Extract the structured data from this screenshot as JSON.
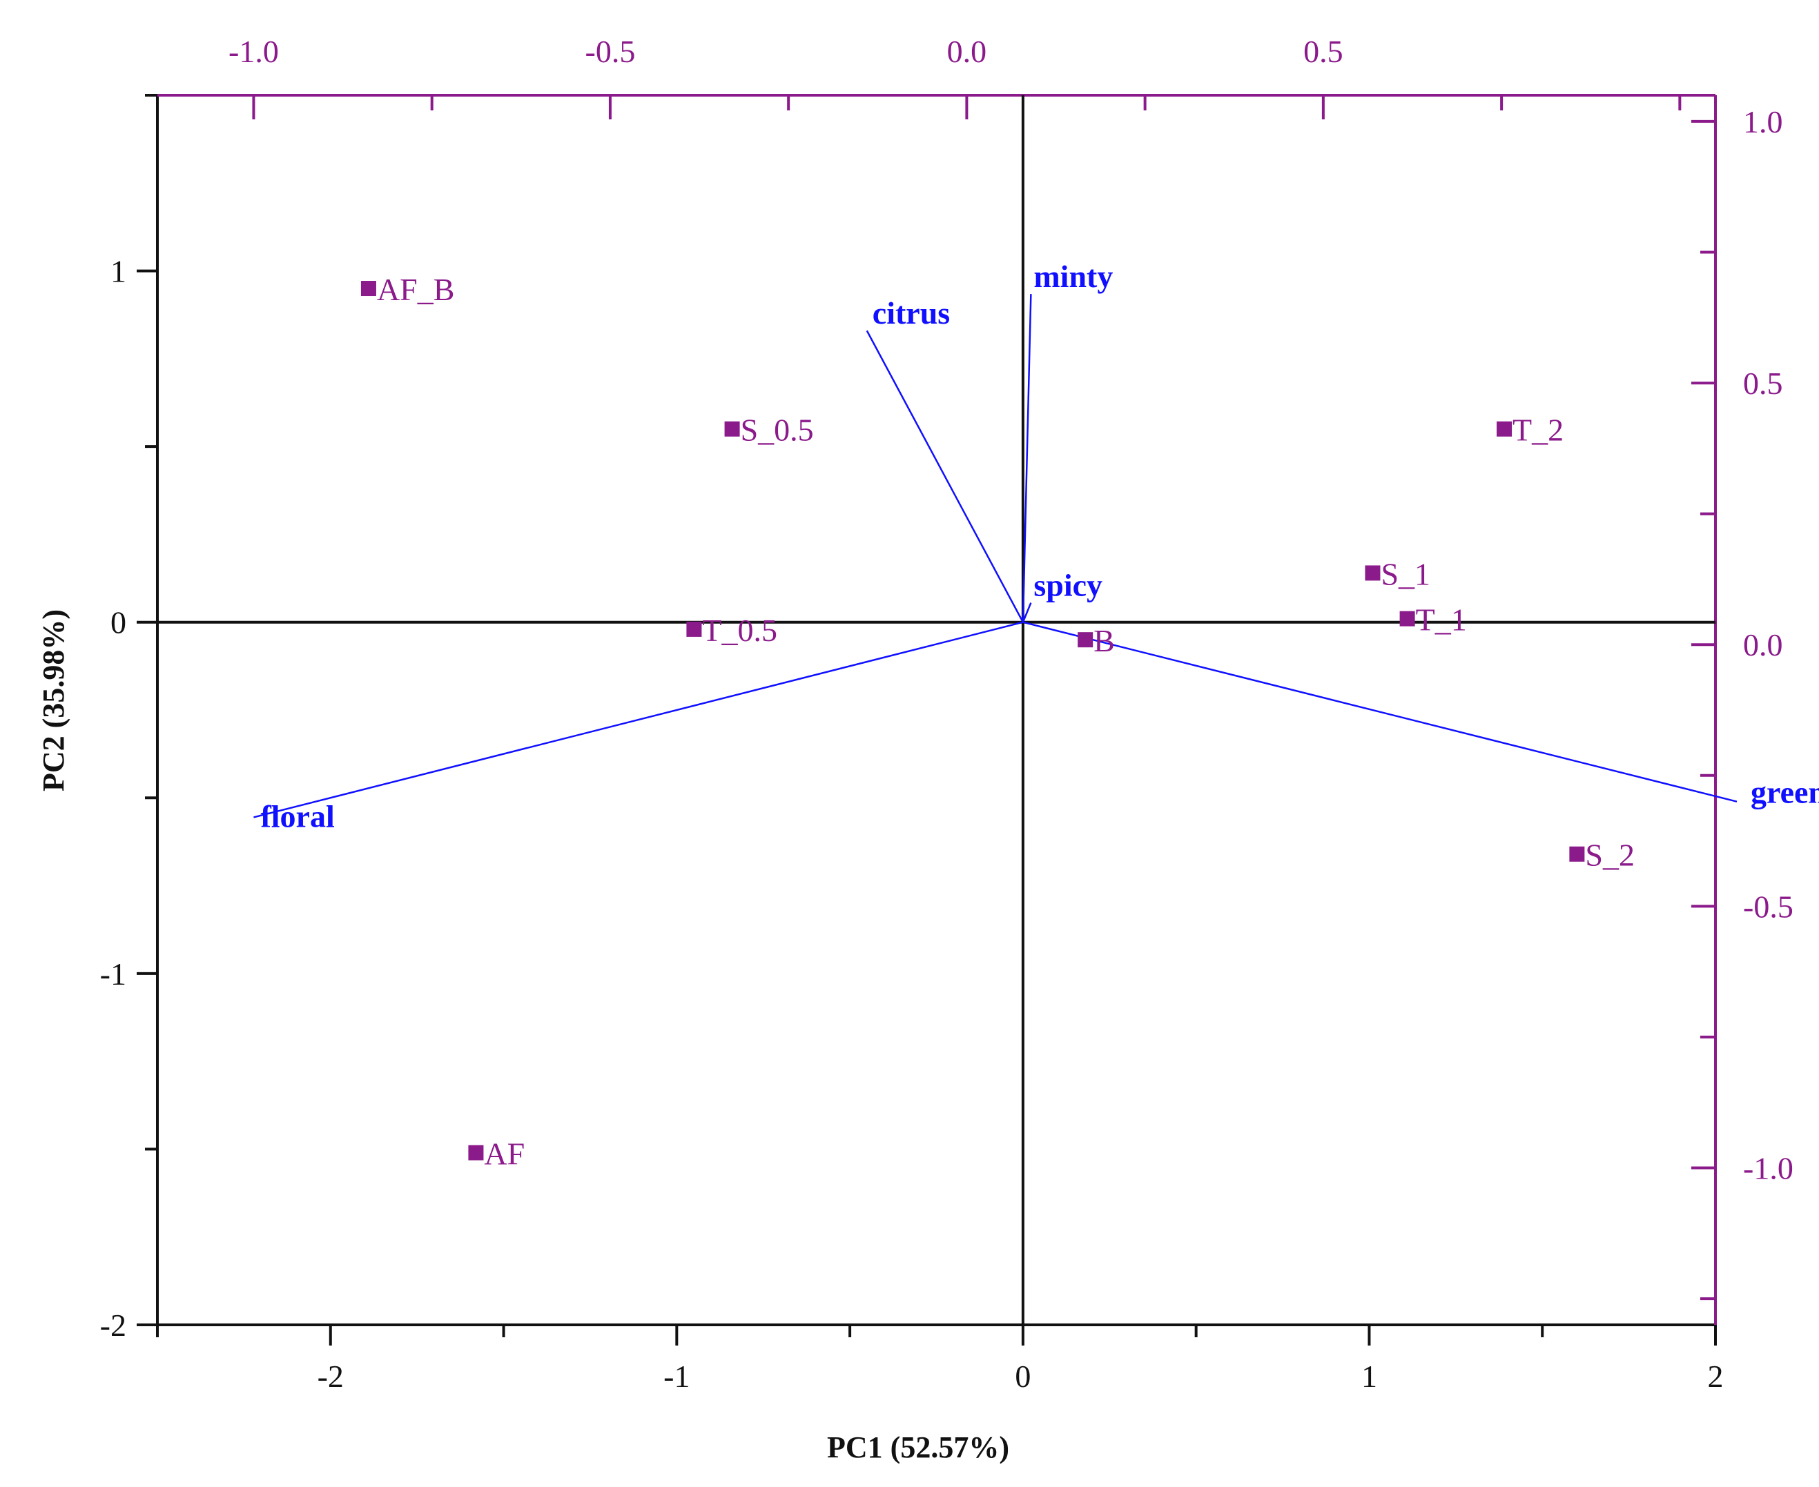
{
  "chart_data": {
    "type": "scatter",
    "title": "",
    "xlabel": "PC1 (52.57%)",
    "ylabel": "PC2 (35.98%)",
    "xlim": [
      -2.5,
      2
    ],
    "ylim": [
      -2,
      1.5
    ],
    "x_ticks": [
      "-2",
      "-1",
      "0",
      "1",
      "2"
    ],
    "y_ticks": [
      "-2",
      "-1",
      "0",
      "1"
    ],
    "loadings_xlim": [
      -1.135,
      1.05
    ],
    "loadings_ylim": [
      -1.3,
      1.05
    ],
    "top_ticks": [
      "-1.0",
      "-0.5",
      "0.0",
      "0.5"
    ],
    "right_ticks": [
      "1.0",
      "0.5",
      "0.0",
      "-0.5",
      "-1.0"
    ],
    "grid": false,
    "colors": {
      "scores": "#8b1a8b",
      "loadings": "#1010ff",
      "secondary_axes": "#8b1a8b",
      "primary_axes": "#111111"
    },
    "scores": [
      {
        "label": "AF_B",
        "x": -1.89,
        "y": 0.95
      },
      {
        "label": "S_0.5",
        "x": -0.84,
        "y": 0.55
      },
      {
        "label": "T_0.5",
        "x": -0.95,
        "y": -0.02
      },
      {
        "label": "AF",
        "x": -1.58,
        "y": -1.51
      },
      {
        "label": "B",
        "x": 0.18,
        "y": -0.05
      },
      {
        "label": "T_2",
        "x": 1.39,
        "y": 0.55
      },
      {
        "label": "S_1",
        "x": 1.01,
        "y": 0.14
      },
      {
        "label": "T_1",
        "x": 1.11,
        "y": 0.01
      },
      {
        "label": "S_2",
        "x": 1.6,
        "y": -0.66
      }
    ],
    "loadings": [
      {
        "label": "minty",
        "x": 0.09,
        "y": 0.67
      },
      {
        "label": "citrus",
        "x": -0.14,
        "y": 0.6
      },
      {
        "label": "spicy",
        "x": 0.09,
        "y": 0.08
      },
      {
        "label": "floral",
        "x": -1.0,
        "y": -0.33
      },
      {
        "label": "green",
        "x": 1.08,
        "y": -0.3
      }
    ]
  }
}
